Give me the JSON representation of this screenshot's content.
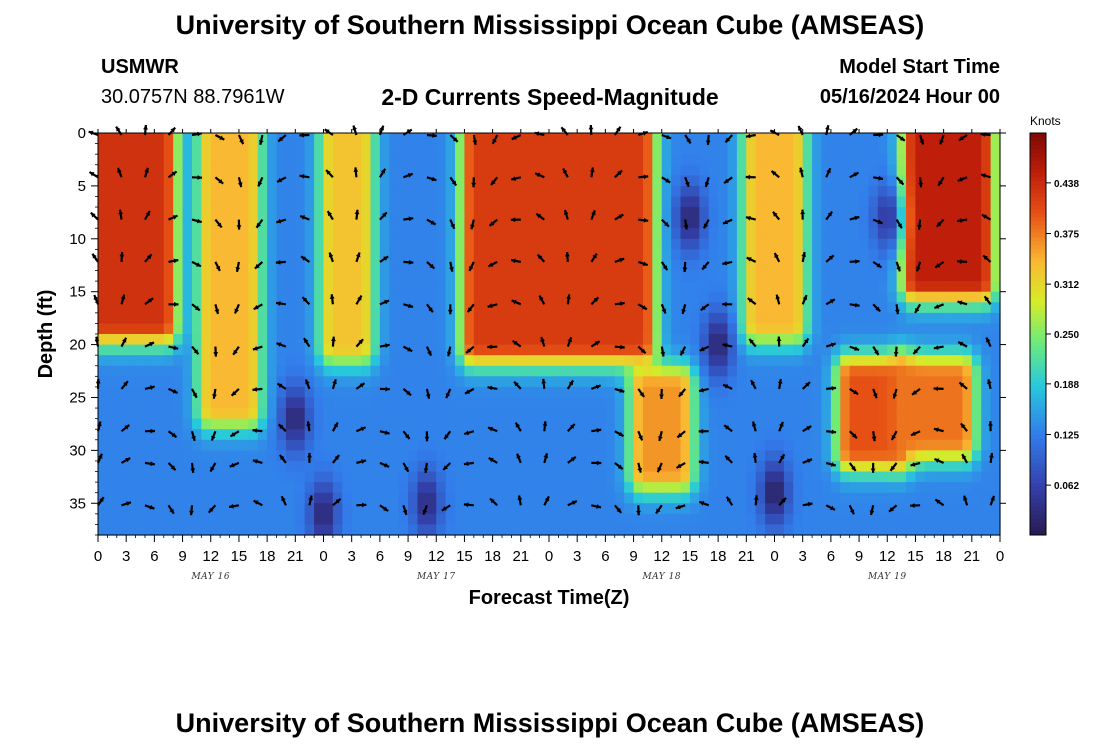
{
  "header": {
    "title_top": "University of Southern Mississippi Ocean Cube (AMSEAS)",
    "title_bottom": "University of Southern Mississippi Ocean Cube (AMSEAS)",
    "station_name": "USMWR",
    "station_coords": "30.0757N  88.7961W",
    "plot_title": "2-D Currents Speed-Magnitude",
    "model_start_label": "Model Start Time",
    "model_start_value": "05/16/2024 Hour 00"
  },
  "chart_data": {
    "type": "heatmap",
    "title": "2-D Currents Speed-Magnitude",
    "xlabel": "Forecast Time(Z)",
    "ylabel": "Depth (ft)",
    "x_hours_range": [
      0,
      96
    ],
    "y_depth_range": [
      0,
      38
    ],
    "x_tick_labels": [
      "0",
      "3",
      "6",
      "9",
      "12",
      "15",
      "18",
      "21",
      "0",
      "3",
      "6",
      "9",
      "12",
      "15",
      "18",
      "21",
      "0",
      "3",
      "6",
      "9",
      "12",
      "15",
      "18",
      "21",
      "0",
      "3",
      "6",
      "9",
      "12",
      "15",
      "18",
      "21",
      "0"
    ],
    "y_ticks": [
      0,
      5,
      10,
      15,
      20,
      25,
      30,
      35
    ],
    "date_labels": [
      "MAY 16",
      "MAY 17",
      "MAY 18",
      "MAY 19"
    ],
    "colorbar": {
      "unit": "Knots",
      "range": [
        0,
        0.5
      ],
      "tick_values": [
        0.062,
        0.125,
        0.188,
        0.25,
        0.312,
        0.375,
        0.438
      ],
      "tick_labels": [
        "0.062",
        "0.125",
        "0.188",
        "0.250",
        "0.312",
        "0.375",
        "0.438"
      ]
    },
    "speed_features_knots": [
      {
        "t0": 0,
        "t1": 7,
        "d0": 0,
        "d1": 18,
        "speed": 0.43
      },
      {
        "t0": 12,
        "t1": 16,
        "d0": 0,
        "d1": 26,
        "speed": 0.34
      },
      {
        "t0": 25,
        "t1": 28,
        "d0": 0,
        "d1": 20,
        "speed": 0.33
      },
      {
        "t0": 40,
        "t1": 58,
        "d0": 0,
        "d1": 20,
        "speed": 0.42
      },
      {
        "t0": 58,
        "t1": 62,
        "d0": 24,
        "d1": 32,
        "speed": 0.36
      },
      {
        "t0": 70,
        "t1": 74,
        "d0": 0,
        "d1": 18,
        "speed": 0.34
      },
      {
        "t0": 80,
        "t1": 85,
        "d0": 23,
        "d1": 30,
        "speed": 0.4
      },
      {
        "t0": 86,
        "t1": 92,
        "d0": 23,
        "d1": 29,
        "speed": 0.38
      },
      {
        "t0": 87,
        "t1": 94,
        "d0": 0,
        "d1": 14,
        "speed": 0.45
      }
    ],
    "low_speed_features_knots": [
      {
        "t": 21,
        "d": 27,
        "speed": 0.02
      },
      {
        "t": 24,
        "d": 36,
        "speed": 0.02
      },
      {
        "t": 35,
        "d": 35,
        "speed": 0.03
      },
      {
        "t": 63,
        "d": 8,
        "speed": 0.02
      },
      {
        "t": 66,
        "d": 20,
        "speed": 0.02
      },
      {
        "t": 72,
        "d": 34,
        "speed": 0.01
      },
      {
        "t": 84,
        "d": 8,
        "speed": 0.05
      }
    ]
  }
}
